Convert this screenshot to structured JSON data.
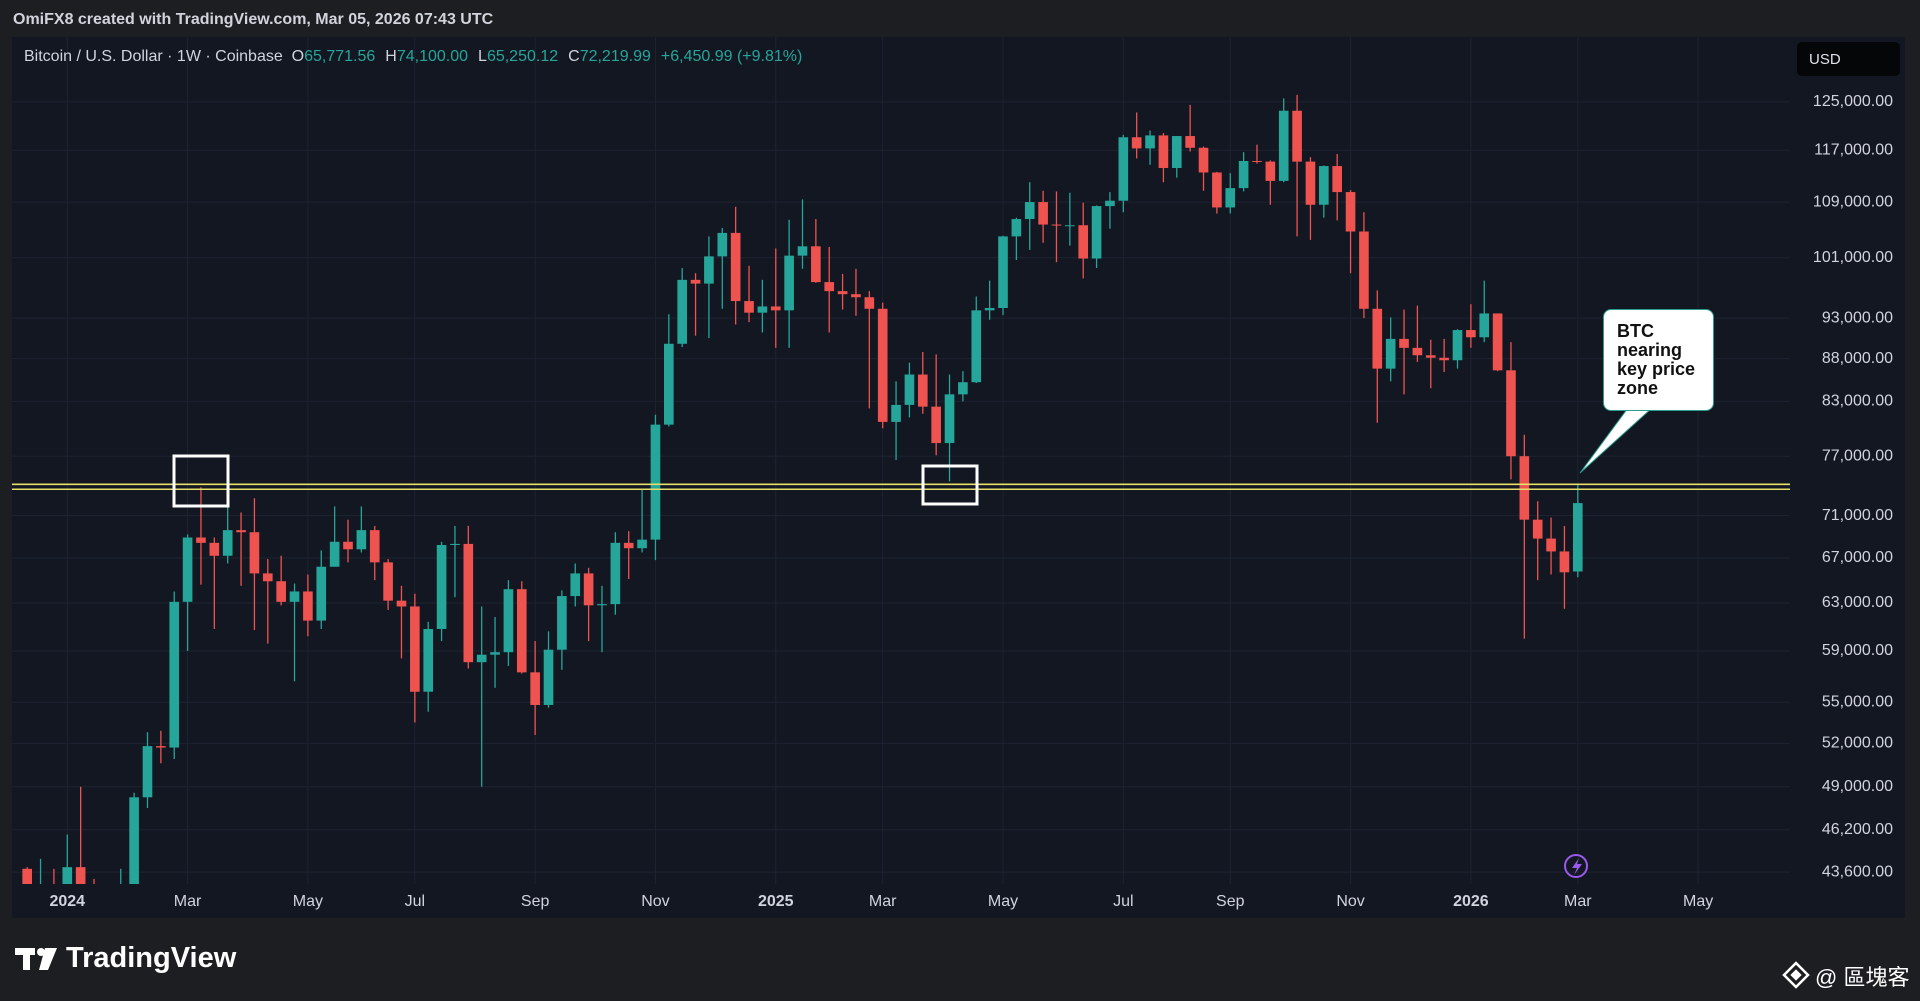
{
  "header": {
    "attribution": "OmiFX8 created with TradingView.com, Mar 05, 2026 07:43 UTC"
  },
  "toolbar": {
    "currency": "USD"
  },
  "footer": {
    "brand": "TradingView",
    "watermark": "@ 區塊客"
  },
  "chart_data": {
    "type": "candlestick",
    "title": "Bitcoin / U.S. Dollar · 1W · Coinbase",
    "ohlc_legend": {
      "labels": [
        "O",
        "H",
        "L",
        "C"
      ],
      "value_labels": [
        "65,771.56",
        "74,100.00",
        "65,250.12",
        "72,219.99"
      ],
      "change": "+6,450.99 (+9.81%)"
    },
    "annotation": "BTC nearing key price zone",
    "key_levels": [
      74100,
      73600
    ],
    "key_level_color": "#e6df6a",
    "up_color": "#26a69a",
    "down_color": "#ef5350",
    "log_scale": true,
    "grid": true,
    "ylim": [
      42900,
      136600
    ],
    "yticks": [
      {
        "value": 43600,
        "label": "43,600.00"
      },
      {
        "value": 46200,
        "label": "46,200.00"
      },
      {
        "value": 49000,
        "label": "49,000.00"
      },
      {
        "value": 52000,
        "label": "52,000.00"
      },
      {
        "value": 55000,
        "label": "55,000.00"
      },
      {
        "value": 59000,
        "label": "59,000.00"
      },
      {
        "value": 63000,
        "label": "63,000.00"
      },
      {
        "value": 67000,
        "label": "67,000.00"
      },
      {
        "value": 71000,
        "label": "71,000.00"
      },
      {
        "value": 77000,
        "label": "77,000.00"
      },
      {
        "value": 83000,
        "label": "83,000.00"
      },
      {
        "value": 88000,
        "label": "88,000.00"
      },
      {
        "value": 93000,
        "label": "93,000.00"
      },
      {
        "value": 101000,
        "label": "101,000.00"
      },
      {
        "value": 109000,
        "label": "109,000.00"
      },
      {
        "value": 117000,
        "label": "117,000.00"
      },
      {
        "value": 125000,
        "label": "125,000.00"
      }
    ],
    "categories": [
      null,
      null,
      null,
      "2024",
      null,
      null,
      null,
      null,
      null,
      null,
      null,
      null,
      "Mar",
      null,
      null,
      null,
      null,
      null,
      null,
      null,
      null,
      "May",
      null,
      null,
      null,
      null,
      null,
      null,
      null,
      "Jul",
      null,
      null,
      null,
      null,
      null,
      null,
      null,
      null,
      "Sep",
      null,
      null,
      null,
      null,
      null,
      null,
      null,
      null,
      "Nov",
      null,
      null,
      null,
      null,
      null,
      null,
      null,
      null,
      "2025",
      null,
      null,
      null,
      null,
      null,
      null,
      null,
      "Mar",
      null,
      null,
      null,
      null,
      null,
      null,
      null,
      null,
      "May",
      null,
      null,
      null,
      null,
      null,
      null,
      null,
      null,
      "Jul",
      null,
      null,
      null,
      null,
      null,
      null,
      null,
      "Sep",
      null,
      null,
      null,
      null,
      null,
      null,
      null,
      null,
      "Nov",
      null,
      null,
      null,
      null,
      null,
      null,
      null,
      null,
      "2026",
      null,
      null,
      null,
      null,
      null,
      null,
      null,
      "Mar",
      null,
      null,
      null,
      null,
      null,
      null,
      null,
      null,
      "May",
      null,
      null,
      null,
      null,
      null,
      null
    ],
    "open": [
      43800,
      41400,
      42600,
      42300,
      43900,
      41700,
      41600,
      42000,
      42600,
      48300,
      51800,
      51700,
      63100,
      68900,
      68400,
      67200,
      69600,
      69400,
      65600,
      64900,
      63100,
      64000,
      61500,
      66200,
      68500,
      67800,
      69600,
      66600,
      63200,
      62700,
      55800,
      60800,
      68200,
      68300,
      58100,
      58700,
      58900,
      64200,
      57300,
      54800,
      59100,
      63600,
      65600,
      62800,
      62900,
      68400,
      67900,
      68700,
      80400,
      89800,
      98000,
      97500,
      101200,
      104500,
      95200,
      93700,
      94500,
      94000,
      101300,
      102600,
      97700,
      96500,
      96100,
      95700,
      94200,
      80700,
      82600,
      86100,
      82400,
      78400,
      83800,
      85200,
      94000,
      94300,
      104000,
      106500,
      109000,
      105700,
      105600,
      105600,
      100900,
      108400,
      109200,
      119100,
      117300,
      119400,
      114200,
      119300,
      117400,
      113500,
      108200,
      111100,
      115300,
      115200,
      112200,
      123500,
      115200,
      108600,
      114500,
      110500,
      104700,
      94200,
      86800,
      90400,
      89300,
      88400,
      88100,
      87800,
      91500,
      90600,
      93600,
      86600,
      77000,
      70600,
      68800,
      67600,
      65771.56,
      null,
      null,
      null,
      null,
      null,
      null,
      null,
      null,
      null,
      null,
      null,
      null,
      null,
      null,
      null
    ],
    "high": [
      43900,
      44400,
      43800,
      45900,
      49000,
      43200,
      42200,
      43800,
      48600,
      52800,
      52900,
      64000,
      69200,
      73800,
      68900,
      71800,
      71300,
      72700,
      66900,
      67200,
      64700,
      65500,
      67700,
      71900,
      70600,
      71900,
      70000,
      66900,
      64500,
      63800,
      61400,
      68500,
      70000,
      70000,
      62700,
      61800,
      65000,
      64900,
      59800,
      60600,
      64100,
      66500,
      66100,
      64500,
      69400,
      69500,
      73600,
      81500,
      93500,
      99600,
      98900,
      104000,
      105200,
      108300,
      99900,
      98000,
      102300,
      106400,
      109400,
      106500,
      102500,
      98800,
      99500,
      96500,
      95000,
      85300,
      87500,
      88800,
      88500,
      86100,
      86500,
      95800,
      97900,
      104100,
      106700,
      112000,
      110700,
      110600,
      110400,
      108900,
      108500,
      110500,
      119500,
      123200,
      120200,
      119800,
      119300,
      124500,
      117600,
      113600,
      113400,
      116700,
      117900,
      115400,
      125600,
      126200,
      115900,
      114600,
      116400,
      110800,
      107500,
      96600,
      93100,
      94100,
      94600,
      90300,
      90400,
      91600,
      94800,
      97900,
      93600,
      90000,
      79300,
      72400,
      70800,
      70000,
      74100,
      null,
      null,
      null,
      null,
      null,
      null,
      null,
      null,
      null,
      null,
      null,
      null,
      null,
      null,
      null
    ],
    "low": [
      40500,
      40600,
      41400,
      40700,
      41500,
      40300,
      38500,
      41800,
      42500,
      47600,
      50600,
      50900,
      59000,
      64600,
      60800,
      66500,
      64500,
      60700,
      59600,
      62800,
      56600,
      60200,
      60800,
      66200,
      66600,
      67500,
      65000,
      62400,
      58400,
      53500,
      54300,
      59800,
      63500,
      57600,
      49000,
      56100,
      57800,
      57200,
      52600,
      54600,
      57500,
      62700,
      59800,
      58900,
      62000,
      65100,
      67500,
      66800,
      80200,
      89400,
      90800,
      90500,
      94200,
      92200,
      92500,
      91200,
      89300,
      89300,
      99500,
      97600,
      91200,
      94100,
      93300,
      82200,
      80000,
      76600,
      81200,
      81600,
      77100,
      74400,
      83000,
      85100,
      92800,
      93400,
      100700,
      102100,
      103100,
      100400,
      102700,
      98200,
      99600,
      105100,
      107500,
      115700,
      114700,
      112000,
      112700,
      116800,
      110700,
      107300,
      107300,
      110600,
      114900,
      108600,
      112000,
      104000,
      103500,
      106700,
      106300,
      98900,
      93000,
      80600,
      85300,
      83800,
      87600,
      84500,
      86400,
      86800,
      89300,
      90000,
      86500,
      74600,
      60000,
      65000,
      65500,
      62500,
      65250.12,
      null,
      null,
      null,
      null,
      null,
      null,
      null,
      null,
      null,
      null,
      null,
      null,
      null,
      null,
      null
    ],
    "close": [
      41400,
      42600,
      42300,
      43900,
      41700,
      41600,
      42000,
      42600,
      48300,
      51800,
      51700,
      63100,
      68900,
      68400,
      67200,
      69600,
      69400,
      65600,
      64900,
      63100,
      64000,
      61500,
      66200,
      68500,
      67800,
      69600,
      66600,
      63200,
      62700,
      55800,
      60800,
      68200,
      68300,
      58100,
      58700,
      58900,
      64200,
      57300,
      54800,
      59100,
      63600,
      65600,
      62800,
      62900,
      68400,
      67900,
      68700,
      80400,
      89800,
      98000,
      97500,
      101200,
      104500,
      95200,
      93700,
      94500,
      94000,
      101300,
      102600,
      97700,
      96500,
      96100,
      95700,
      94200,
      80700,
      82600,
      86100,
      82400,
      78400,
      83800,
      85200,
      94000,
      94300,
      104000,
      106500,
      109000,
      105700,
      105600,
      105600,
      100900,
      108400,
      109200,
      119100,
      117300,
      119400,
      114200,
      119300,
      117400,
      113500,
      108200,
      111100,
      115300,
      115200,
      112200,
      123500,
      115200,
      108600,
      114500,
      110500,
      104700,
      94200,
      86800,
      90400,
      89300,
      88400,
      88100,
      87800,
      91500,
      90600,
      93600,
      86600,
      77000,
      70600,
      68800,
      67600,
      65700,
      72219.99,
      null,
      null,
      null,
      null,
      null,
      null,
      null,
      null,
      null,
      null,
      null,
      null,
      null,
      null,
      null
    ]
  }
}
